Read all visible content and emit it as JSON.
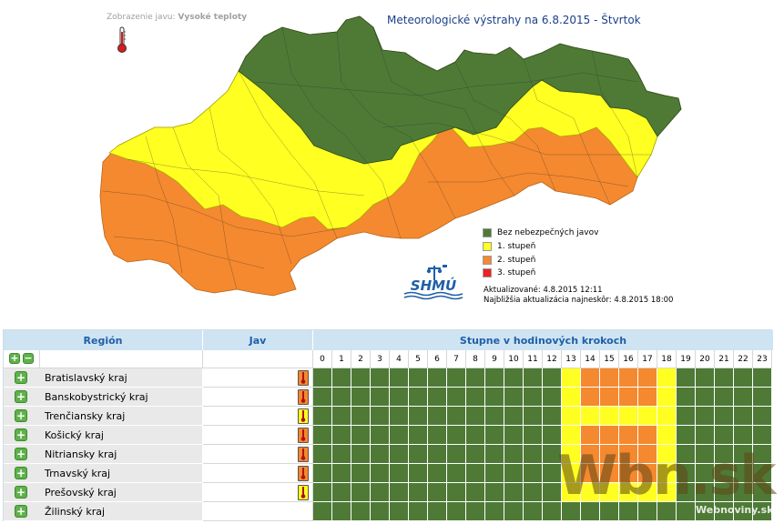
{
  "header": {
    "jav_prefix": "Zobrazenie javu:",
    "jav_value": "Vysoké teploty",
    "title": "Meteorologické výstrahy na 6.8.2015 - Štvrtok"
  },
  "legend": {
    "items": [
      {
        "label": "Bez nebezpečných javov",
        "color": "#4e7a36"
      },
      {
        "label": "1. stupeň",
        "color": "#ffff22"
      },
      {
        "label": "2. stupeň",
        "color": "#f4892f"
      },
      {
        "label": "3. stupeň",
        "color": "#ee2222"
      }
    ]
  },
  "logo": {
    "text": "SHMÚ"
  },
  "update": {
    "updated": "Aktualizované: 4.8.2015 12:11",
    "next": "Najbližšia aktualizácia najneskôr: 4.8.2015 18:00"
  },
  "table": {
    "col_region": "Región",
    "col_jav": "Jav",
    "col_hours": "Stupne v hodinových krokoch",
    "hours": [
      "0",
      "1",
      "2",
      "3",
      "4",
      "5",
      "6",
      "7",
      "8",
      "9",
      "10",
      "11",
      "12",
      "13",
      "14",
      "15",
      "16",
      "17",
      "18",
      "19",
      "20",
      "21",
      "22",
      "23"
    ],
    "rows": [
      {
        "name": "Bratislavský kraj",
        "icon": "orange",
        "levels": [
          0,
          0,
          0,
          0,
          0,
          0,
          0,
          0,
          0,
          0,
          0,
          0,
          0,
          1,
          2,
          2,
          2,
          2,
          1,
          0,
          0,
          0,
          0,
          0
        ]
      },
      {
        "name": "Banskobystrický kraj",
        "icon": "orange",
        "levels": [
          0,
          0,
          0,
          0,
          0,
          0,
          0,
          0,
          0,
          0,
          0,
          0,
          0,
          1,
          2,
          2,
          2,
          2,
          1,
          0,
          0,
          0,
          0,
          0
        ]
      },
      {
        "name": "Trenčiansky kraj",
        "icon": "yellow",
        "levels": [
          0,
          0,
          0,
          0,
          0,
          0,
          0,
          0,
          0,
          0,
          0,
          0,
          0,
          1,
          1,
          1,
          1,
          1,
          1,
          0,
          0,
          0,
          0,
          0
        ]
      },
      {
        "name": "Košický kraj",
        "icon": "orange",
        "levels": [
          0,
          0,
          0,
          0,
          0,
          0,
          0,
          0,
          0,
          0,
          0,
          0,
          0,
          1,
          2,
          2,
          2,
          2,
          1,
          0,
          0,
          0,
          0,
          0
        ]
      },
      {
        "name": "Nitriansky kraj",
        "icon": "orange",
        "levels": [
          0,
          0,
          0,
          0,
          0,
          0,
          0,
          0,
          0,
          0,
          0,
          0,
          0,
          1,
          2,
          2,
          2,
          2,
          1,
          0,
          0,
          0,
          0,
          0
        ]
      },
      {
        "name": "Trnavský kraj",
        "icon": "orange",
        "levels": [
          0,
          0,
          0,
          0,
          0,
          0,
          0,
          0,
          0,
          0,
          0,
          0,
          0,
          1,
          2,
          2,
          2,
          2,
          1,
          0,
          0,
          0,
          0,
          0
        ]
      },
      {
        "name": "Prešovský kraj",
        "icon": "yellow",
        "levels": [
          0,
          0,
          0,
          0,
          0,
          0,
          0,
          0,
          0,
          0,
          0,
          0,
          0,
          1,
          1,
          1,
          1,
          1,
          1,
          0,
          0,
          0,
          0,
          0
        ]
      },
      {
        "name": "Žilinský kraj",
        "icon": "none",
        "levels": [
          0,
          0,
          0,
          0,
          0,
          0,
          0,
          0,
          0,
          0,
          0,
          0,
          0,
          0,
          0,
          0,
          0,
          0,
          0,
          0,
          0,
          0,
          0,
          0
        ]
      }
    ]
  },
  "colors": {
    "level0": "#4e7a36",
    "level1": "#ffff22",
    "level2": "#f4892f",
    "level3": "#ee2222"
  },
  "watermark": {
    "big": "Wbn.sk",
    "small": "Webnoviny.sk"
  }
}
